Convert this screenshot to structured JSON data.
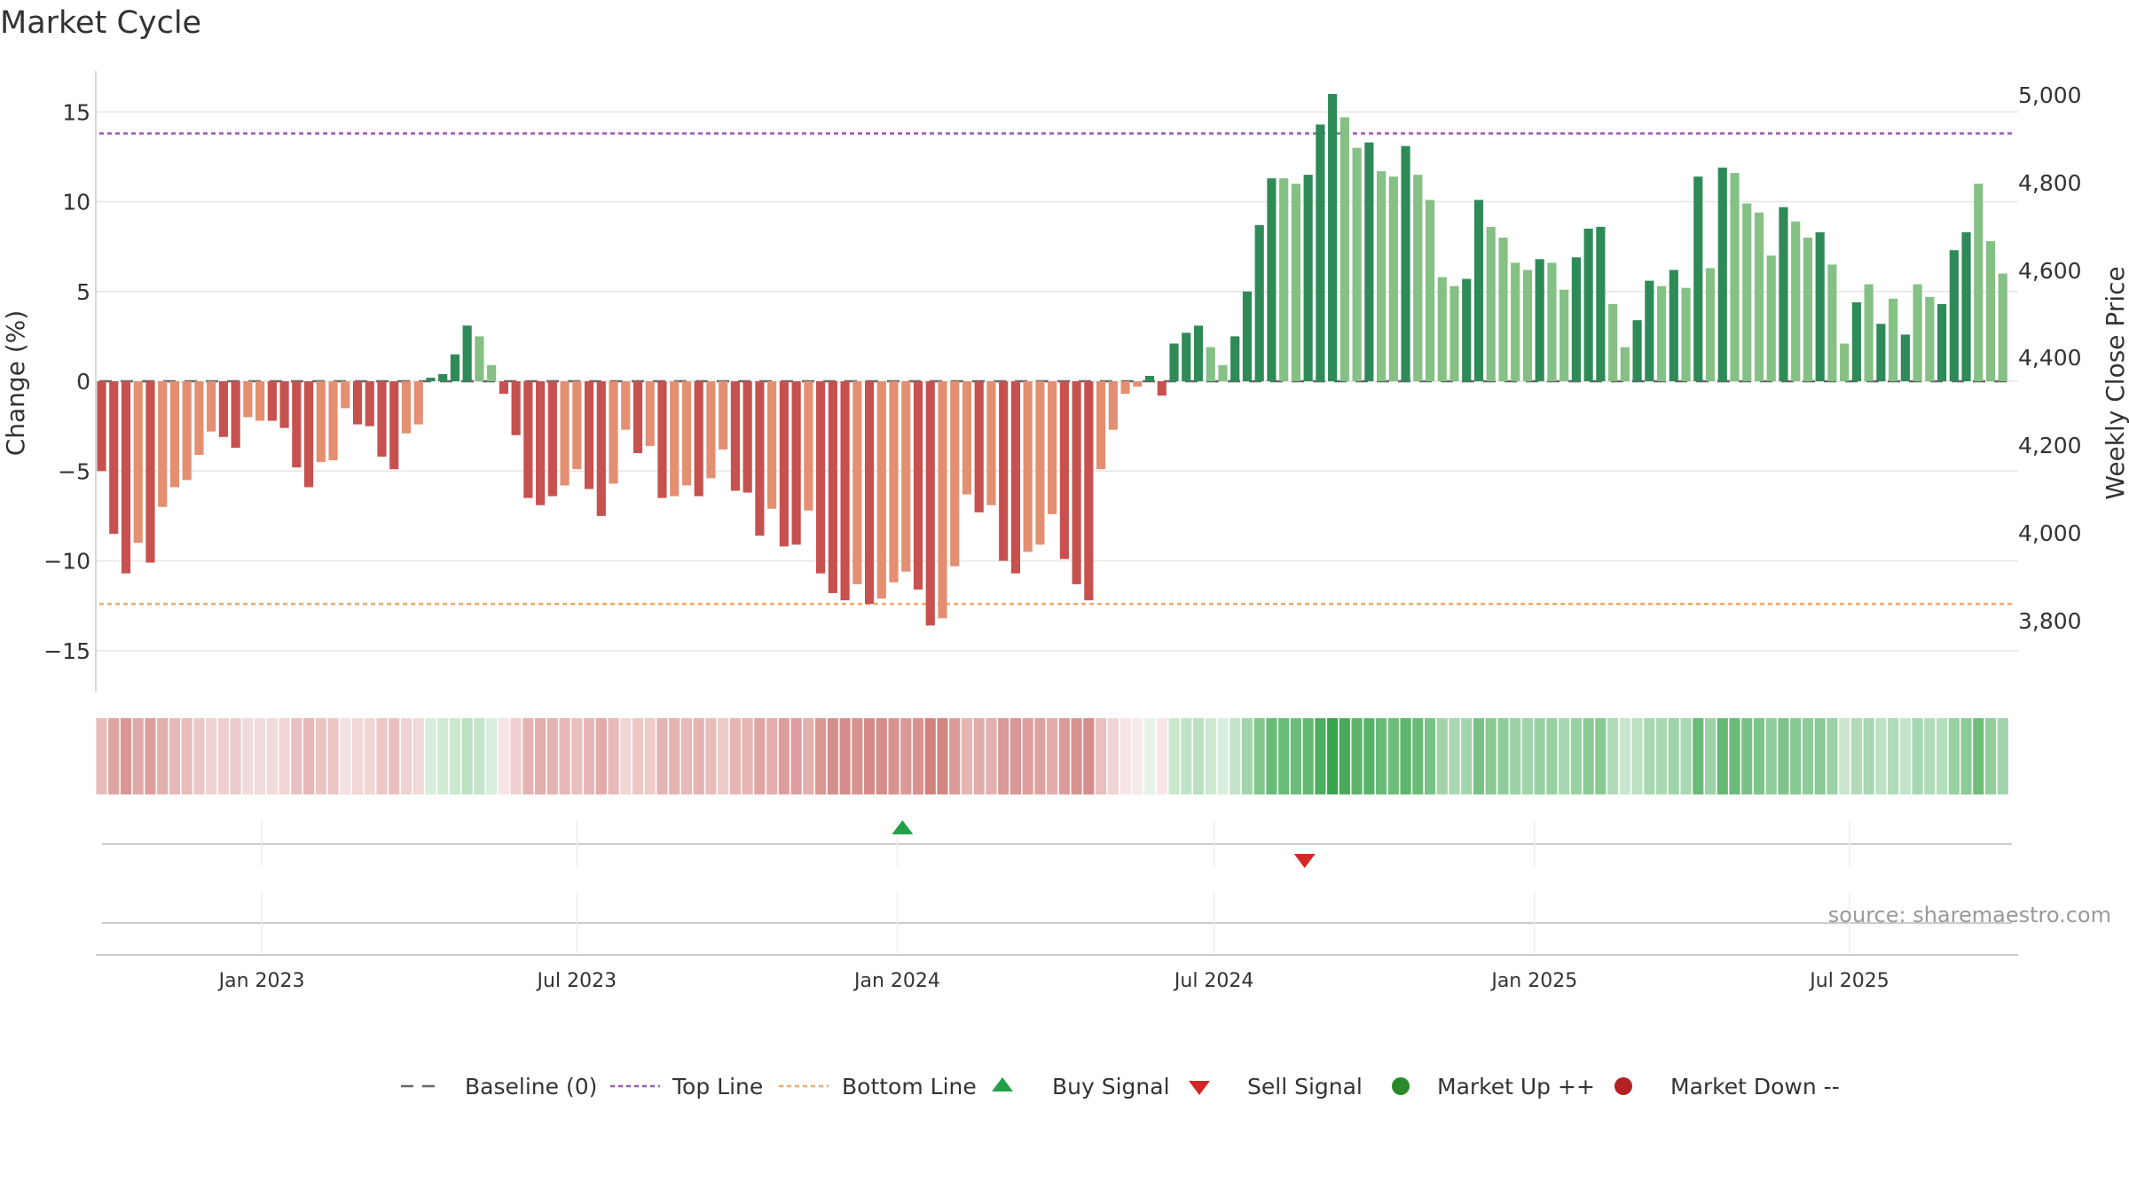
{
  "title": "Market Cycle",
  "source_text": "source: sharemaestro.com",
  "colors": {
    "strong_down": "#c7514f",
    "weak_down": "#e48f72",
    "strong_up": "#2e8b57",
    "weak_up": "#85c084",
    "top_line": "#9b59b6",
    "bottom_line": "#f0a868",
    "baseline": "#666666",
    "buy_signal": "#22a048",
    "sell_signal": "#d62728",
    "market_up": "#2a8a2a",
    "market_down": "#b22222"
  },
  "chart_data": {
    "type": "bar",
    "title": "Market Cycle",
    "ylabel_left": "Change (%)",
    "ylabel_right": "Weekly Close Price",
    "ylim_left": [
      -17.5,
      17.5
    ],
    "yticks_left": [
      "15",
      "10",
      "5",
      "0",
      "−5",
      "−10",
      "−15"
    ],
    "yticks_right": [
      "5,000",
      "4,800",
      "4,600",
      "4,400",
      "4,200",
      "4,000",
      "3,800"
    ],
    "xticks": [
      "Jan 2023",
      "Jul 2023",
      "Jan 2024",
      "Jul 2024",
      "Jan 2025",
      "Jul 2025"
    ],
    "top_line": 13.8,
    "bottom_line": -12.4,
    "grid": true,
    "legend_position": "bottom",
    "series": [
      {
        "values": [
          -5,
          -8.5,
          -10.7,
          -9,
          -10.1,
          -7,
          -5.9,
          -5.5,
          -4.1,
          -2.8,
          -3.1,
          -3.7,
          -2,
          -2.2,
          -2.2,
          -2.6,
          -4.8,
          -5.9,
          -4.5,
          -4.4,
          -1.5,
          -2.4,
          -2.5,
          -4.2,
          -4.9,
          -2.9,
          -2.4,
          0.2,
          0.4,
          1.5,
          3.1,
          2.5,
          0.9,
          -0.7,
          -3,
          -6.5,
          -6.9,
          -6.4,
          -5.8,
          -4.9,
          -6,
          -7.5,
          -5.7,
          -2.7,
          -4,
          -3.6,
          -6.5,
          -6.4,
          -5.8,
          -6.4,
          -5.4,
          -3.8,
          -6.1,
          -6.2,
          -8.6,
          -7.1,
          -9.2,
          -9.1,
          -7.2,
          -10.7,
          -11.8,
          -12.2,
          -11.3,
          -12.4,
          -12.1,
          -11.2,
          -10.6,
          -11.6,
          -13.6,
          -13.2,
          -10.3,
          -6.3,
          -7.3,
          -6.9,
          -10,
          -10.7,
          -9.5,
          -9.1,
          -7.4,
          -9.9,
          -11.3,
          -12.2,
          -4.9,
          -2.7,
          -0.7,
          -0.3,
          0.3,
          -0.8,
          2.1,
          2.7,
          3.1,
          1.9,
          0.9,
          2.5,
          5,
          8.7,
          11.3,
          11.3,
          11,
          11.5,
          14.3,
          16,
          14.7,
          13,
          13.3,
          11.7,
          11.4,
          13.1,
          11.5,
          10.1,
          5.8,
          5.3,
          5.7,
          10.1,
          8.6,
          8,
          6.6,
          6.2,
          6.8,
          6.6,
          5.1,
          6.9,
          8.5,
          8.6,
          4.3,
          1.9,
          3.4,
          5.6,
          5.3,
          6.2,
          5.2,
          11.4,
          6.3,
          11.9,
          11.6,
          9.9,
          9.4,
          7,
          9.7,
          8.9,
          8,
          8.3,
          6.5,
          2.1,
          4.4,
          5.4,
          3.2,
          4.6,
          2.6,
          5.4,
          4.7,
          4.3,
          7.3,
          8.3,
          11,
          7.8,
          6
        ],
        "strength": [
          "s",
          "s",
          "s",
          "w",
          "s",
          "w",
          "w",
          "w",
          "w",
          "w",
          "s",
          "s",
          "w",
          "w",
          "s",
          "s",
          "s",
          "s",
          "w",
          "w",
          "w",
          "s",
          "s",
          "s",
          "s",
          "w",
          "w",
          "s",
          "s",
          "s",
          "s",
          "w",
          "w",
          "s",
          "s",
          "s",
          "s",
          "s",
          "w",
          "w",
          "s",
          "s",
          "w",
          "w",
          "s",
          "w",
          "s",
          "w",
          "w",
          "s",
          "w",
          "w",
          "s",
          "s",
          "s",
          "w",
          "s",
          "s",
          "w",
          "s",
          "s",
          "s",
          "w",
          "s",
          "w",
          "w",
          "w",
          "s",
          "s",
          "w",
          "w",
          "w",
          "s",
          "w",
          "s",
          "s",
          "w",
          "w",
          "w",
          "s",
          "s",
          "s",
          "w",
          "w",
          "w",
          "w",
          "s",
          "s",
          "s",
          "s",
          "s",
          "w",
          "w",
          "s",
          "s",
          "s",
          "s",
          "w",
          "w",
          "s",
          "s",
          "s",
          "w",
          "w",
          "s",
          "w",
          "w",
          "s",
          "w",
          "w",
          "w",
          "w",
          "s",
          "s",
          "w",
          "w",
          "w",
          "w",
          "s",
          "w",
          "w",
          "s",
          "s",
          "s",
          "w",
          "w",
          "s",
          "s",
          "w",
          "s",
          "w",
          "s",
          "w",
          "s",
          "w",
          "w",
          "w",
          "w",
          "s",
          "w",
          "w",
          "s",
          "w",
          "w",
          "s",
          "w",
          "s",
          "w",
          "s",
          "w",
          "w",
          "s",
          "s",
          "s",
          "w",
          "w"
        ],
        "heat_intensity": [
          0.38,
          0.52,
          0.6,
          0.5,
          0.55,
          0.46,
          0.4,
          0.38,
          0.32,
          0.25,
          0.27,
          0.3,
          0.2,
          0.21,
          0.21,
          0.24,
          0.36,
          0.4,
          0.34,
          0.33,
          0.17,
          0.23,
          0.24,
          0.32,
          0.36,
          0.25,
          0.22,
          0.2,
          0.22,
          0.25,
          0.32,
          0.28,
          0.18,
          0.15,
          0.27,
          0.44,
          0.46,
          0.43,
          0.4,
          0.36,
          0.41,
          0.48,
          0.4,
          0.24,
          0.32,
          0.3,
          0.43,
          0.43,
          0.4,
          0.43,
          0.38,
          0.3,
          0.42,
          0.42,
          0.52,
          0.46,
          0.55,
          0.55,
          0.46,
          0.6,
          0.64,
          0.66,
          0.62,
          0.67,
          0.65,
          0.62,
          0.59,
          0.63,
          0.72,
          0.7,
          0.58,
          0.42,
          0.47,
          0.45,
          0.58,
          0.6,
          0.56,
          0.54,
          0.47,
          0.57,
          0.62,
          0.66,
          0.36,
          0.24,
          0.15,
          0.12,
          0.12,
          0.15,
          0.25,
          0.3,
          0.33,
          0.24,
          0.18,
          0.28,
          0.44,
          0.6,
          0.72,
          0.72,
          0.7,
          0.74,
          0.85,
          0.95,
          0.88,
          0.78,
          0.8,
          0.72,
          0.7,
          0.78,
          0.72,
          0.64,
          0.45,
          0.42,
          0.44,
          0.64,
          0.57,
          0.54,
          0.48,
          0.46,
          0.5,
          0.49,
          0.42,
          0.5,
          0.56,
          0.57,
          0.38,
          0.26,
          0.33,
          0.42,
          0.41,
          0.46,
          0.41,
          0.72,
          0.47,
          0.74,
          0.72,
          0.64,
          0.62,
          0.52,
          0.62,
          0.58,
          0.54,
          0.56,
          0.48,
          0.25,
          0.38,
          0.42,
          0.31,
          0.38,
          0.28,
          0.42,
          0.38,
          0.36,
          0.5,
          0.55,
          0.7,
          0.53,
          0.45
        ]
      }
    ],
    "signals": [
      {
        "type": "buy",
        "date": "2024-01-04"
      },
      {
        "type": "sell",
        "date": "2024-08-22"
      }
    ]
  },
  "legend": [
    {
      "label": "Baseline (0)",
      "marker": "dash-line"
    },
    {
      "label": "Top Line",
      "marker": "dotted-purple-line"
    },
    {
      "label": "Bottom Line",
      "marker": "dotted-orange-line"
    },
    {
      "label": "Buy Signal",
      "marker": "green-up-triangle"
    },
    {
      "label": "Sell Signal",
      "marker": "red-down-triangle"
    },
    {
      "label": "Market Up ++",
      "marker": "green-circle"
    },
    {
      "label": "Market Down --",
      "marker": "red-circle"
    }
  ]
}
